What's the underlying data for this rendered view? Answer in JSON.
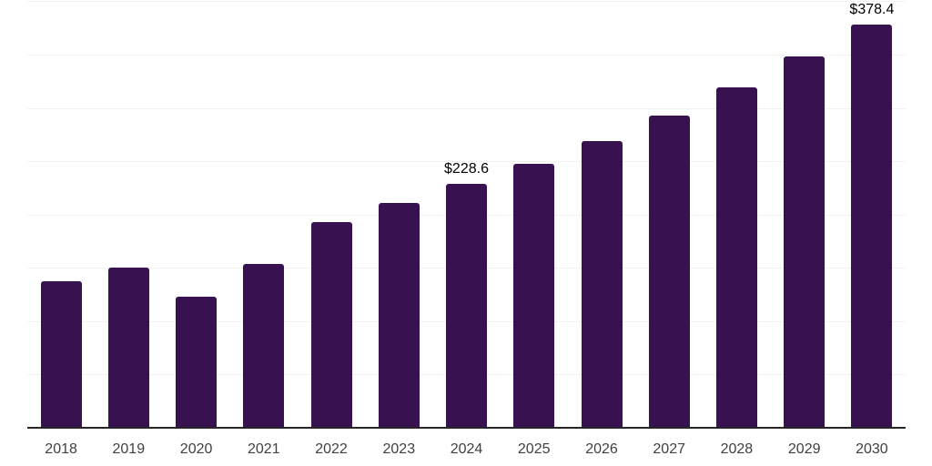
{
  "chart_data": {
    "type": "bar",
    "title": "",
    "xlabel": "",
    "ylabel": "",
    "categories": [
      "2018",
      "2019",
      "2020",
      "2021",
      "2022",
      "2023",
      "2024",
      "2025",
      "2026",
      "2027",
      "2028",
      "2029",
      "2030"
    ],
    "values": [
      137.5,
      150,
      123,
      154,
      193,
      211,
      228.6,
      248,
      269,
      293,
      319,
      348,
      378.4
    ],
    "data_labels": [
      {
        "category": "2024",
        "text": "$228.6"
      },
      {
        "category": "2030",
        "text": "$378.4"
      }
    ],
    "ylim": [
      0,
      400
    ],
    "grid_step": 50,
    "grid": true,
    "legend_position": "none",
    "y_axis_labels_shown": false
  },
  "colors": {
    "bar": "#381150",
    "gridline": "#f2f2f2",
    "axis_line": "#262626",
    "tick_label": "#404040",
    "data_label": "#000000",
    "background": "#ffffff"
  }
}
